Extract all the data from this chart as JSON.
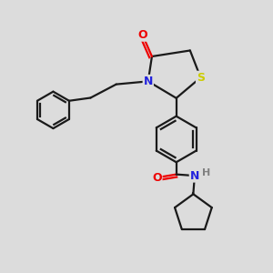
{
  "background_color": "#dcdcdc",
  "bond_color": "#1a1a1a",
  "atom_colors": {
    "O": "#ee0000",
    "N": "#2222dd",
    "S": "#cccc00",
    "H": "#808080",
    "C": "#1a1a1a"
  },
  "figsize": [
    3.0,
    3.0
  ],
  "dpi": 100,
  "lw": 1.6,
  "fontsize": 9
}
